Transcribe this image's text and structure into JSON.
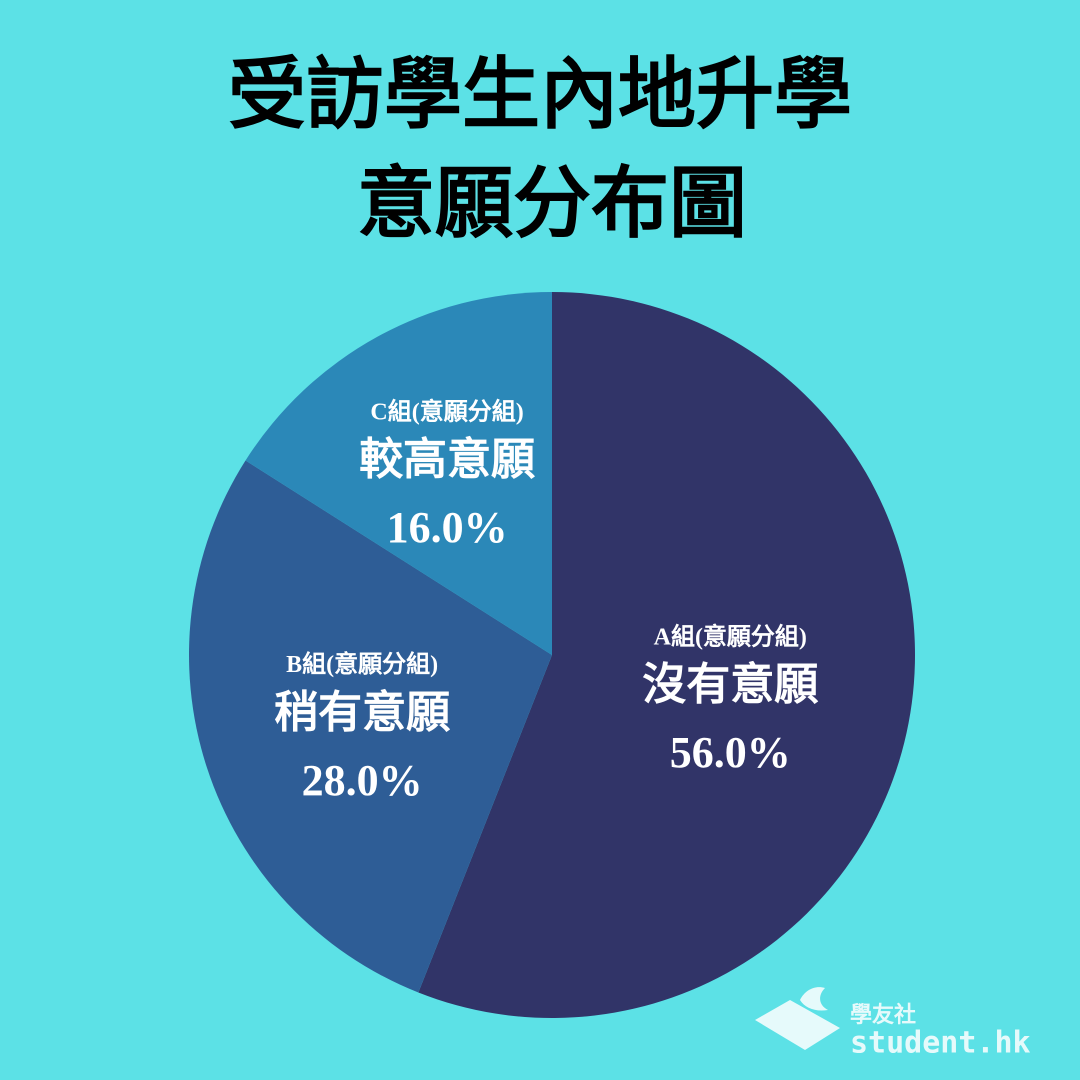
{
  "chart_data": {
    "type": "pie",
    "title": [
      "受訪學生內地升學",
      "意願分布圖"
    ],
    "groups": [
      "A組(意願分組)",
      "B組(意願分組)",
      "C組(意願分組)"
    ],
    "categories": [
      "沒有意願",
      "稍有意願",
      "較高意願"
    ],
    "values": [
      56,
      28,
      16
    ],
    "value_labels": [
      "56.0%",
      "28.0%",
      "16.0%"
    ],
    "colors": [
      "#313468",
      "#2e5d96",
      "#2b88b8"
    ]
  },
  "watermark": {
    "org": "學友社",
    "site": "student.hk"
  }
}
